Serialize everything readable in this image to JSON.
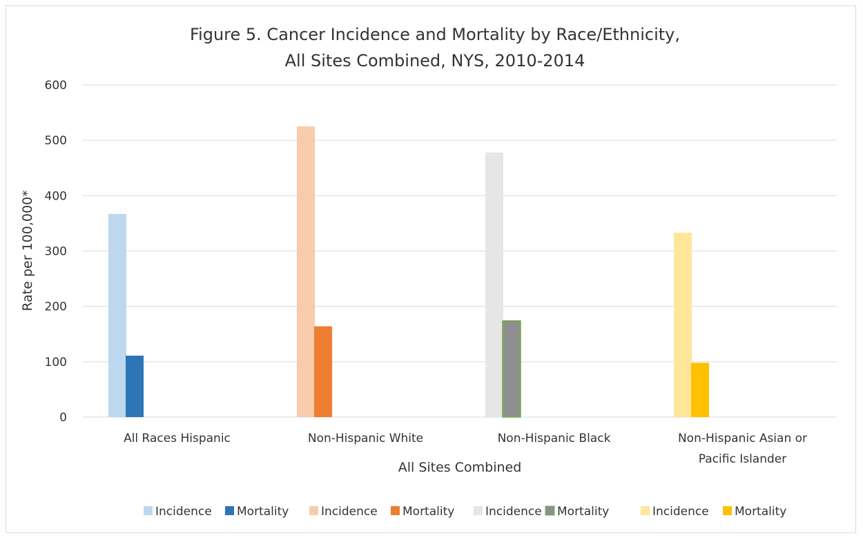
{
  "chart_data": {
    "type": "bar",
    "title": [
      "Figure 5. Cancer Incidence and Mortality by Race/Ethnicity,",
      "All Sites Combined, NYS, 2010-2014"
    ],
    "xlabel": "All Sites Combined",
    "ylabel": "Rate per 100,000*",
    "ylim": [
      0,
      600
    ],
    "yticks": [
      0,
      100,
      200,
      300,
      400,
      500,
      600
    ],
    "grid": true,
    "legend_position": "bottom",
    "categories": [
      [
        "All Races Hispanic"
      ],
      [
        "Non-Hispanic White"
      ],
      [
        "Non-Hispanic Black"
      ],
      [
        "Non-Hispanic Asian or",
        "Pacific Islander"
      ]
    ],
    "series": [
      {
        "name": "Incidence",
        "values": [
          367,
          null,
          null,
          null
        ],
        "color": "#bdd7ee"
      },
      {
        "name": "Mortality",
        "values": [
          111,
          null,
          null,
          null
        ],
        "color": "#2e75b6"
      },
      {
        "name": "Incidence",
        "values": [
          null,
          525,
          null,
          null
        ],
        "color": "#f8cbad"
      },
      {
        "name": "Mortality",
        "values": [
          null,
          164,
          null,
          null
        ],
        "color": "#ed7d31"
      },
      {
        "name": "Incidence",
        "values": [
          null,
          null,
          478,
          null
        ],
        "color": "#e7e6e6"
      },
      {
        "name": "Mortality",
        "values": [
          null,
          null,
          174,
          null
        ],
        "color": "#8f8f8f"
      },
      {
        "name": "Incidence",
        "values": [
          null,
          null,
          null,
          333
        ],
        "color": "#ffe699"
      },
      {
        "name": "Mortality",
        "values": [
          null,
          null,
          null,
          98
        ],
        "color": "#ffc000"
      }
    ]
  }
}
